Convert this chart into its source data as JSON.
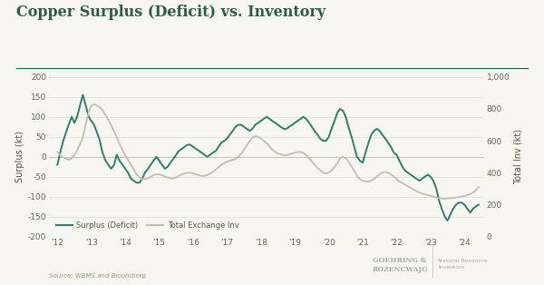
{
  "title": "Copper Surplus (Deficit) vs. Inventory",
  "ylabel_left": "Surplus (kt)",
  "ylabel_right": "Total Inv (kt)",
  "source": "Source: WBMS and Bloomberg",
  "watermark_line1": "GOEHRING &",
  "watermark_line2": "ROZENCWAJG",
  "watermark_right": "Natural Resource\nInvestors",
  "background_color": "#f7f6f1",
  "surplus_color": "#2e7d6e",
  "inventory_color": "#c0bfb0",
  "ylim_left": [
    -200,
    200
  ],
  "ylim_right": [
    0,
    1000
  ],
  "x_ticks": [
    2012,
    2013,
    2014,
    2015,
    2016,
    2017,
    2018,
    2019,
    2020,
    2021,
    2022,
    2023,
    2024
  ],
  "x_tick_labels": [
    "'12",
    "'13",
    "'14",
    "'15",
    "'16",
    "'17",
    "'18",
    "'19",
    "'20",
    "'21",
    "'22",
    "'23",
    "'24"
  ],
  "surplus_x": [
    2012.0,
    2012.08,
    2012.17,
    2012.25,
    2012.33,
    2012.42,
    2012.5,
    2012.58,
    2012.67,
    2012.75,
    2012.83,
    2012.92,
    2013.0,
    2013.08,
    2013.17,
    2013.25,
    2013.33,
    2013.42,
    2013.5,
    2013.58,
    2013.67,
    2013.75,
    2013.83,
    2013.92,
    2014.0,
    2014.08,
    2014.17,
    2014.25,
    2014.33,
    2014.42,
    2014.5,
    2014.58,
    2014.67,
    2014.75,
    2014.83,
    2014.92,
    2015.0,
    2015.08,
    2015.17,
    2015.25,
    2015.33,
    2015.42,
    2015.5,
    2015.58,
    2015.67,
    2015.75,
    2015.83,
    2015.92,
    2016.0,
    2016.08,
    2016.17,
    2016.25,
    2016.33,
    2016.42,
    2016.5,
    2016.58,
    2016.67,
    2016.75,
    2016.83,
    2016.92,
    2017.0,
    2017.08,
    2017.17,
    2017.25,
    2017.33,
    2017.42,
    2017.5,
    2017.58,
    2017.67,
    2017.75,
    2017.83,
    2017.92,
    2018.0,
    2018.08,
    2018.17,
    2018.25,
    2018.33,
    2018.42,
    2018.5,
    2018.58,
    2018.67,
    2018.75,
    2018.83,
    2018.92,
    2019.0,
    2019.08,
    2019.17,
    2019.25,
    2019.33,
    2019.42,
    2019.5,
    2019.58,
    2019.67,
    2019.75,
    2019.83,
    2019.92,
    2020.0,
    2020.08,
    2020.17,
    2020.25,
    2020.33,
    2020.42,
    2020.5,
    2020.58,
    2020.67,
    2020.75,
    2020.83,
    2020.92,
    2021.0,
    2021.08,
    2021.17,
    2021.25,
    2021.33,
    2021.42,
    2021.5,
    2021.58,
    2021.67,
    2021.75,
    2021.83,
    2021.92,
    2022.0,
    2022.08,
    2022.17,
    2022.25,
    2022.33,
    2022.42,
    2022.5,
    2022.58,
    2022.67,
    2022.75,
    2022.83,
    2022.92,
    2023.0,
    2023.08,
    2023.17,
    2023.25,
    2023.33,
    2023.42,
    2023.5,
    2023.58,
    2023.67,
    2023.75,
    2023.83,
    2023.92,
    2024.0,
    2024.08,
    2024.17,
    2024.25,
    2024.33,
    2024.42
  ],
  "surplus_y": [
    -20,
    10,
    40,
    60,
    80,
    100,
    85,
    100,
    130,
    155,
    130,
    100,
    90,
    80,
    60,
    40,
    10,
    -10,
    -20,
    -30,
    -20,
    5,
    -10,
    -20,
    -30,
    -40,
    -55,
    -60,
    -65,
    -65,
    -55,
    -40,
    -30,
    -20,
    -10,
    0,
    -10,
    -20,
    -30,
    -25,
    -15,
    -5,
    5,
    15,
    20,
    25,
    30,
    30,
    25,
    20,
    15,
    10,
    5,
    0,
    5,
    10,
    15,
    25,
    35,
    40,
    45,
    55,
    65,
    75,
    80,
    80,
    75,
    70,
    65,
    70,
    80,
    85,
    90,
    95,
    100,
    95,
    90,
    85,
    80,
    75,
    70,
    70,
    75,
    80,
    85,
    90,
    95,
    100,
    95,
    85,
    75,
    65,
    55,
    45,
    40,
    40,
    50,
    70,
    90,
    110,
    120,
    115,
    100,
    75,
    50,
    25,
    0,
    -10,
    -15,
    10,
    35,
    55,
    65,
    70,
    65,
    55,
    45,
    35,
    25,
    10,
    5,
    -10,
    -25,
    -35,
    -40,
    -45,
    -50,
    -55,
    -60,
    -55,
    -50,
    -45,
    -50,
    -60,
    -80,
    -110,
    -130,
    -150,
    -160,
    -145,
    -130,
    -120,
    -115,
    -115,
    -120,
    -130,
    -140,
    -130,
    -125,
    -120
  ],
  "inventory_x": [
    2012.0,
    2012.08,
    2012.17,
    2012.25,
    2012.33,
    2012.42,
    2012.5,
    2012.58,
    2012.67,
    2012.75,
    2012.83,
    2012.92,
    2013.0,
    2013.08,
    2013.17,
    2013.25,
    2013.33,
    2013.42,
    2013.5,
    2013.58,
    2013.67,
    2013.75,
    2013.83,
    2013.92,
    2014.0,
    2014.08,
    2014.17,
    2014.25,
    2014.33,
    2014.42,
    2014.5,
    2014.58,
    2014.67,
    2014.75,
    2014.83,
    2014.92,
    2015.0,
    2015.08,
    2015.17,
    2015.25,
    2015.33,
    2015.42,
    2015.5,
    2015.58,
    2015.67,
    2015.75,
    2015.83,
    2015.92,
    2016.0,
    2016.08,
    2016.17,
    2016.25,
    2016.33,
    2016.42,
    2016.5,
    2016.58,
    2016.67,
    2016.75,
    2016.83,
    2016.92,
    2017.0,
    2017.08,
    2017.17,
    2017.25,
    2017.33,
    2017.42,
    2017.5,
    2017.58,
    2017.67,
    2017.75,
    2017.83,
    2017.92,
    2018.0,
    2018.08,
    2018.17,
    2018.25,
    2018.33,
    2018.42,
    2018.5,
    2018.58,
    2018.67,
    2018.75,
    2018.83,
    2018.92,
    2019.0,
    2019.08,
    2019.17,
    2019.25,
    2019.33,
    2019.42,
    2019.5,
    2019.58,
    2019.67,
    2019.75,
    2019.83,
    2019.92,
    2020.0,
    2020.08,
    2020.17,
    2020.25,
    2020.33,
    2020.42,
    2020.5,
    2020.58,
    2020.67,
    2020.75,
    2020.83,
    2020.92,
    2021.0,
    2021.08,
    2021.17,
    2021.25,
    2021.33,
    2021.42,
    2021.5,
    2021.58,
    2021.67,
    2021.75,
    2021.83,
    2021.92,
    2022.0,
    2022.08,
    2022.17,
    2022.25,
    2022.33,
    2022.42,
    2022.5,
    2022.58,
    2022.67,
    2022.75,
    2022.83,
    2022.92,
    2023.0,
    2023.08,
    2023.17,
    2023.25,
    2023.33,
    2023.42,
    2023.5,
    2023.58,
    2023.67,
    2023.75,
    2023.83,
    2023.92,
    2024.0,
    2024.08,
    2024.17,
    2024.25,
    2024.33,
    2024.42
  ],
  "inventory_y": [
    530,
    510,
    495,
    490,
    480,
    490,
    510,
    540,
    580,
    620,
    700,
    780,
    820,
    830,
    820,
    810,
    790,
    760,
    730,
    700,
    660,
    620,
    580,
    540,
    510,
    480,
    450,
    420,
    390,
    370,
    360,
    360,
    365,
    375,
    385,
    390,
    390,
    385,
    375,
    370,
    365,
    365,
    370,
    380,
    390,
    395,
    400,
    400,
    395,
    390,
    385,
    380,
    380,
    385,
    395,
    405,
    420,
    435,
    450,
    460,
    470,
    475,
    480,
    485,
    500,
    520,
    545,
    570,
    600,
    620,
    630,
    625,
    615,
    600,
    585,
    565,
    545,
    530,
    520,
    515,
    510,
    510,
    515,
    520,
    525,
    530,
    530,
    525,
    510,
    490,
    470,
    450,
    430,
    415,
    400,
    395,
    400,
    415,
    435,
    460,
    490,
    500,
    490,
    470,
    440,
    410,
    380,
    360,
    350,
    345,
    345,
    350,
    360,
    375,
    390,
    400,
    405,
    400,
    390,
    375,
    360,
    345,
    335,
    325,
    315,
    305,
    295,
    285,
    275,
    270,
    265,
    260,
    255,
    250,
    245,
    240,
    238,
    237,
    238,
    240,
    242,
    245,
    248,
    250,
    255,
    260,
    265,
    275,
    290,
    310
  ]
}
